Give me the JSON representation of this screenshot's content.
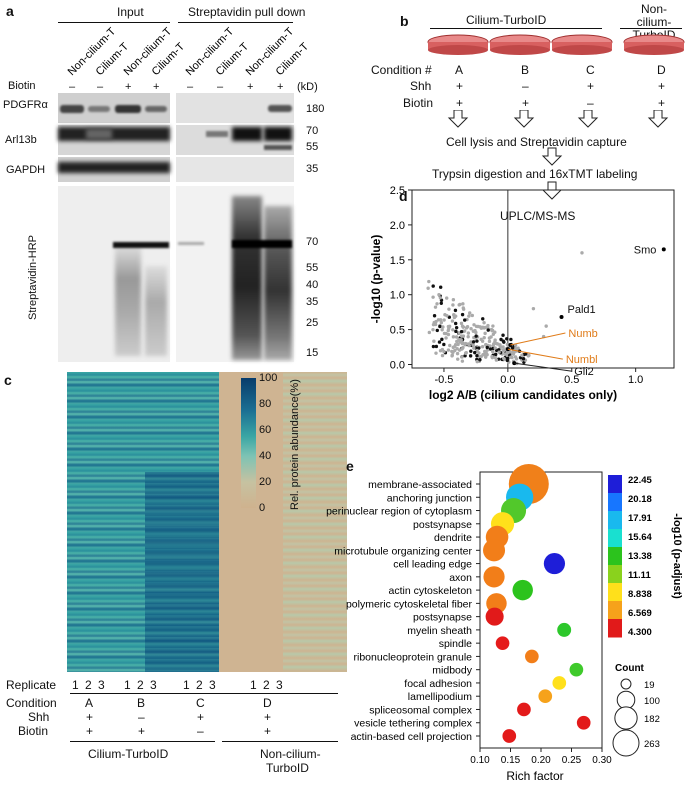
{
  "panels": {
    "a": "a",
    "b": "b",
    "c": "c",
    "d": "d",
    "e": "e"
  },
  "panel_a": {
    "group_input": "Input",
    "group_pulldown": "Streptavidin pull down",
    "lanes": [
      "Non-cilium-T",
      "Cilium-T",
      "Non-cilium-T",
      "Cilium-T",
      "Non-cilium-T",
      "Cilium-T",
      "Non-cilium-T",
      "Cilium-T"
    ],
    "biotin_label": "Biotin",
    "biotin_signs": [
      "–",
      "–",
      "+",
      "+",
      "–",
      "–",
      "+",
      "+"
    ],
    "kd_label": "(kD)",
    "rows": [
      "PDGFRα",
      "Arl13b",
      "GAPDH",
      "Streptavidin-HRP"
    ],
    "marker_pdgfra": "180",
    "marker_arl13b": [
      "70",
      "55"
    ],
    "marker_gapdh": "35",
    "marker_strep": [
      "70",
      "55",
      "40",
      "35",
      "25",
      "15"
    ]
  },
  "panel_b": {
    "group_cilium": "Cilium-TurboID",
    "group_noncilium": "Non-cilium-TurboID",
    "condition_label": "Condition #",
    "shh_label": "Shh",
    "biotin_label": "Biotin",
    "conditions": [
      "A",
      "B",
      "C",
      "D"
    ],
    "shh": [
      "+",
      "–",
      "+",
      "+"
    ],
    "biotin": [
      "+",
      "+",
      "–",
      "+"
    ],
    "step1": "Cell lysis and Streptavidin capture",
    "step2": "Trypsin digestion and 16xTMT labeling",
    "step3": "UPLC/MS-MS"
  },
  "panel_c": {
    "colorbar_title": "Rel. protein abundance(%)",
    "colorbar_ticks": [
      "100",
      "80",
      "60",
      "40",
      "20",
      "0"
    ],
    "replicate_label": "Replicate",
    "replicates": [
      "1",
      "2",
      "3",
      "1",
      "2",
      "3",
      "1",
      "2",
      "3",
      "1",
      "2",
      "3"
    ],
    "condition_label": "Condition",
    "shh_label": "Shh",
    "biotin_label": "Biotin",
    "conditions": [
      "A",
      "B",
      "C",
      "D"
    ],
    "shh": [
      "+",
      "–",
      "+",
      "+"
    ],
    "biotin": [
      "+",
      "+",
      "–",
      "+"
    ],
    "group_cilium": "Cilium-TurboID",
    "group_noncilium_1": "Non-cilium-",
    "group_noncilium_2": "TurboID"
  },
  "panel_d": {
    "annotations": [
      "Smo",
      "Pald1",
      "Numb",
      "Numbl",
      "Gli2"
    ]
  },
  "panel_e": {
    "colorbar_title": "-log10 (p-adjust)",
    "colorbar_ticks": [
      "22.45",
      "20.18",
      "17.91",
      "15.64",
      "13.38",
      "11.11",
      "8.838",
      "6.569",
      "4.300"
    ],
    "count_title": "Count",
    "count_values": [
      "19",
      "100",
      "182",
      "263"
    ]
  },
  "chart_data": [
    {
      "type": "scatter",
      "title": "",
      "xlabel": "log2 A/B (cilium candidates only)",
      "ylabel": "-log10 (p-value)",
      "xlim": [
        -0.75,
        1.3
      ],
      "ylim": [
        -0.05,
        2.5
      ],
      "x_ticks": [
        "-0.5",
        "0.0",
        "0.5",
        "1.0"
      ],
      "y_ticks": [
        "0.0",
        "0.5",
        "1.0",
        "1.5",
        "2.0",
        "2.5"
      ],
      "highlighted": [
        {
          "name": "Smo",
          "x": 1.22,
          "y": 1.65
        },
        {
          "name": "Pald1",
          "x": 0.42,
          "y": 0.68
        },
        {
          "name": "Numb",
          "x": 0.02,
          "y": 0.28
        },
        {
          "name": "Numbl",
          "x": 0.0,
          "y": 0.22
        },
        {
          "name": "Gli2",
          "x": 0.05,
          "y": 0.02
        }
      ]
    },
    {
      "type": "scatter",
      "title": "",
      "xlabel": "Rich factor",
      "ylabel": "",
      "xlim": [
        0.1,
        0.3
      ],
      "x_ticks": [
        "0.10",
        "0.15",
        "0.20",
        "0.25",
        "0.30"
      ],
      "categories": [
        "membrane-associated",
        "anchoring junction",
        "perinuclear region of cytoplasm",
        "postsynapse",
        "dendrite",
        "microtubule organizing center",
        "cell leading edge",
        "axon",
        "actin cytoskeleton",
        "polymeric cytoskeletal fiber",
        "postsynapse",
        "myelin sheath",
        "spindle",
        "ribonucleoprotein granule",
        "midbody",
        "focal adhesion",
        "lamellipodium",
        "spliceosomal complex",
        "vesicle tethering complex",
        "actin-based cell projection"
      ],
      "rich_factor": [
        0.18,
        0.165,
        0.155,
        0.137,
        0.128,
        0.123,
        0.222,
        0.123,
        0.17,
        0.127,
        0.124,
        0.238,
        0.137,
        0.185,
        0.258,
        0.23,
        0.207,
        0.172,
        0.27,
        0.148
      ],
      "count": [
        263,
        110,
        90,
        75,
        70,
        66,
        60,
        60,
        55,
        55,
        40,
        20,
        19,
        19,
        19,
        19,
        19,
        19,
        19,
        19
      ],
      "p_adjust_color": [
        "#f0801a",
        "#19b9ee",
        "#52c82b",
        "#ffe01b",
        "#f27e19",
        "#f27e19",
        "#1e1ed8",
        "#f27e19",
        "#2cc31d",
        "#f27e19",
        "#e11a1a",
        "#2dc82b",
        "#e51b1b",
        "#f27e19",
        "#3fca2b",
        "#ffe01b",
        "#f6a21b",
        "#e31a1a",
        "#e31a1a",
        "#e31a1a"
      ]
    }
  ]
}
